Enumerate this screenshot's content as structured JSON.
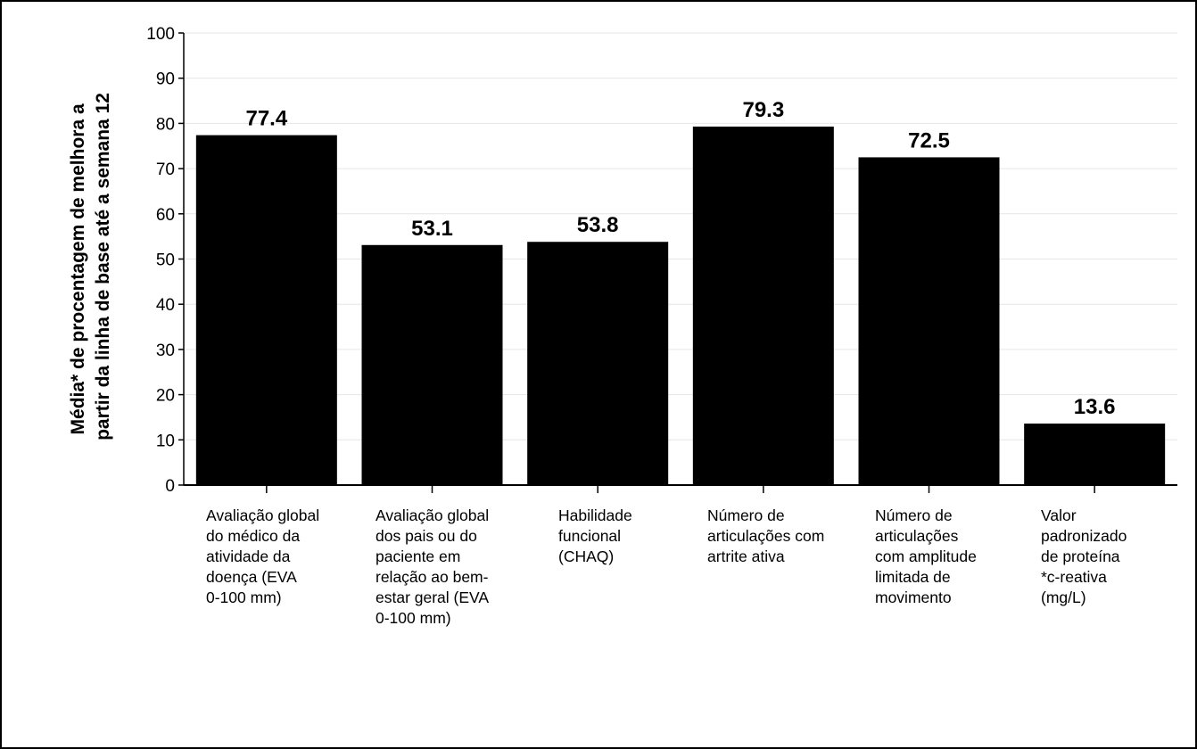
{
  "chart_data": {
    "type": "bar",
    "ylabel_lines": [
      "Média* de procentagem de melhora a",
      "partir da linha de base até a semana 12"
    ],
    "ylim": [
      0,
      100
    ],
    "yticks": [
      0,
      10,
      20,
      30,
      40,
      50,
      60,
      70,
      80,
      90,
      100
    ],
    "grid": true,
    "categories": [
      "Avaliação global\ndo médico da\natividade da\ndoença (EVA\n0-100 mm)",
      "Avaliação global\ndos pais ou do\npaciente em\nrelação ao bem-\nestar geral (EVA\n0-100 mm)",
      "Habilidade\nfuncional\n(CHAQ)",
      "Número de\narticulações com\nartrite ativa",
      "Número de\narticulações\ncom amplitude\nlimitada de\nmovimento",
      "Valor\npadronizado\nde proteína\n*c-reativa\n(mg/L)"
    ],
    "values": [
      77.4,
      53.1,
      53.8,
      79.3,
      72.5,
      13.6
    ],
    "value_labels": [
      "77.4",
      "53.1",
      "53.8",
      "79.3",
      "72.5",
      "13.6"
    ],
    "bar_color": "#000000",
    "grid_color": "#e6e6e6"
  }
}
